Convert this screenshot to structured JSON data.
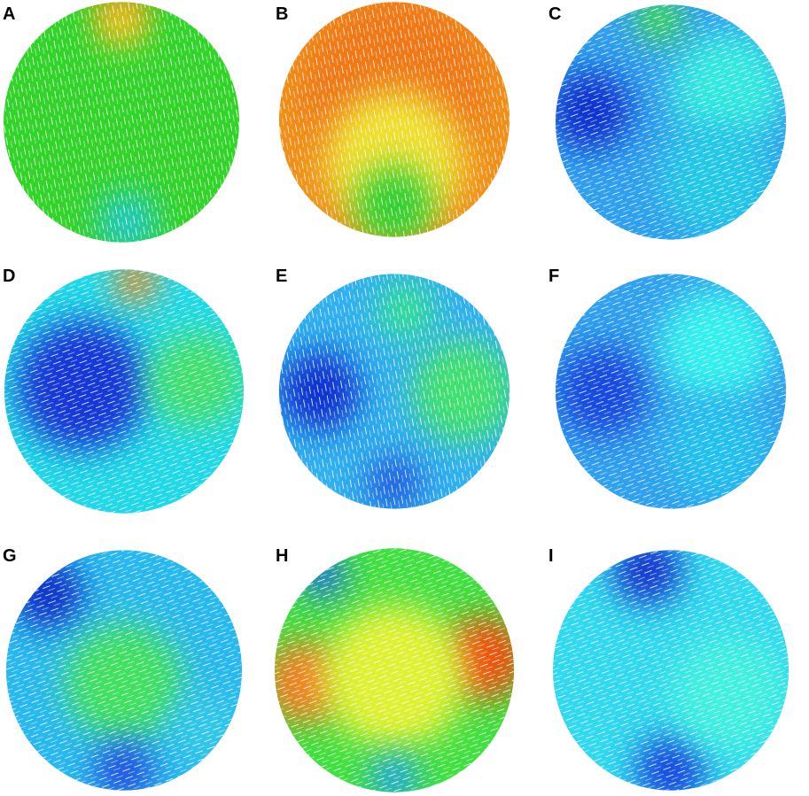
{
  "panels": [
    {
      "label": "A"
    },
    {
      "label": "B"
    },
    {
      "label": "C"
    },
    {
      "label": "D"
    },
    {
      "label": "E"
    },
    {
      "label": "F"
    },
    {
      "label": "G"
    },
    {
      "label": "H"
    },
    {
      "label": "I"
    }
  ]
}
